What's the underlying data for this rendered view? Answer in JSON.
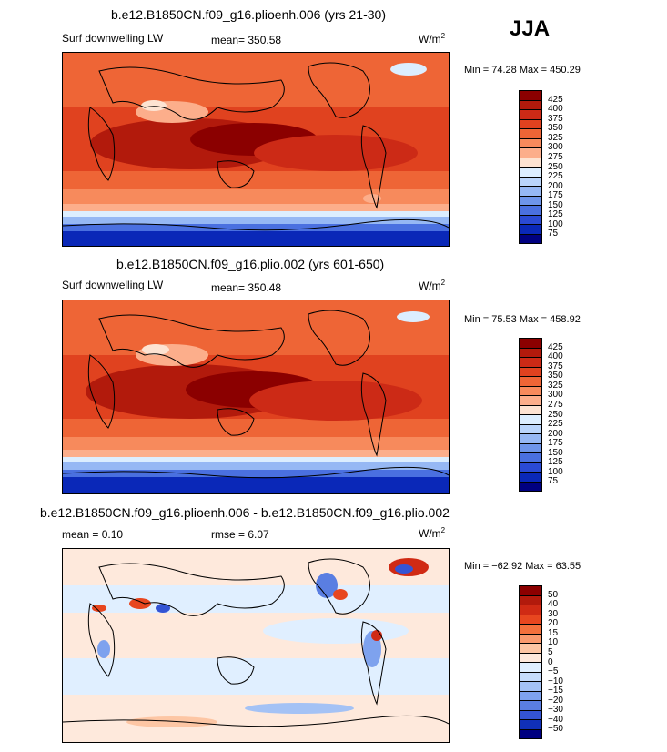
{
  "season": "JJA",
  "panels": [
    {
      "id": "p1",
      "title": "b.e12.B1850CN.f09_g16.plioenh.006 (yrs 21-30)",
      "left_label": "Surf downwelling LW",
      "stat1": "mean= 350.58",
      "stat2": "",
      "units": "W/m",
      "units_exp": "2",
      "minmax": "Min =   74.28 Max = 450.29",
      "levels": [
        "425",
        "400",
        "375",
        "350",
        "325",
        "300",
        "275",
        "250",
        "225",
        "200",
        "175",
        "150",
        "125",
        "100",
        "75"
      ],
      "colors": [
        "#8b0000",
        "#b21a0c",
        "#cc2a16",
        "#e0421f",
        "#ee6536",
        "#f78a5c",
        "#fcae8b",
        "#fde3d2",
        "#dceeff",
        "#bad5fb",
        "#96b8f4",
        "#6e95ea",
        "#4a70e0",
        "#2a4ad4",
        "#0a28b8",
        "#000080"
      ]
    },
    {
      "id": "p2",
      "title": "b.e12.B1850CN.f09_g16.plio.002 (yrs 601-650)",
      "left_label": "Surf downwelling LW",
      "stat1": "mean= 350.48",
      "stat2": "",
      "units": "W/m",
      "units_exp": "2",
      "minmax": "Min =   75.53 Max = 458.92",
      "levels": [
        "425",
        "400",
        "375",
        "350",
        "325",
        "300",
        "275",
        "250",
        "225",
        "200",
        "175",
        "150",
        "125",
        "100",
        "75"
      ],
      "colors": [
        "#8b0000",
        "#b21a0c",
        "#cc2a16",
        "#e0421f",
        "#ee6536",
        "#f78a5c",
        "#fcae8b",
        "#fde3d2",
        "#dceeff",
        "#bad5fb",
        "#96b8f4",
        "#6e95ea",
        "#4a70e0",
        "#2a4ad4",
        "#0a28b8",
        "#000080"
      ]
    },
    {
      "id": "p3",
      "title": "b.e12.B1850CN.f09_g16.plioenh.006 - b.e12.B1850CN.f09_g16.plio.002",
      "left_label": "mean =    0.10",
      "stat1": "rmse =    6.07",
      "stat2": "",
      "units": "W/m",
      "units_exp": "2",
      "minmax": "Min = −62.92 Max =   63.55",
      "levels": [
        "50",
        "40",
        "30",
        "20",
        "15",
        "10",
        "5",
        "0",
        "−5",
        "−10",
        "−15",
        "−20",
        "−30",
        "−40",
        "−50"
      ],
      "colors": [
        "#8b0000",
        "#b21a0c",
        "#d02a14",
        "#e8461f",
        "#f4703c",
        "#fa9a6e",
        "#fdc6a4",
        "#fee9dc",
        "#e0efff",
        "#c6dcfb",
        "#a4c2f5",
        "#7ea2ee",
        "#5a7ee2",
        "#3454d4",
        "#1030b8",
        "#000080"
      ]
    }
  ]
}
